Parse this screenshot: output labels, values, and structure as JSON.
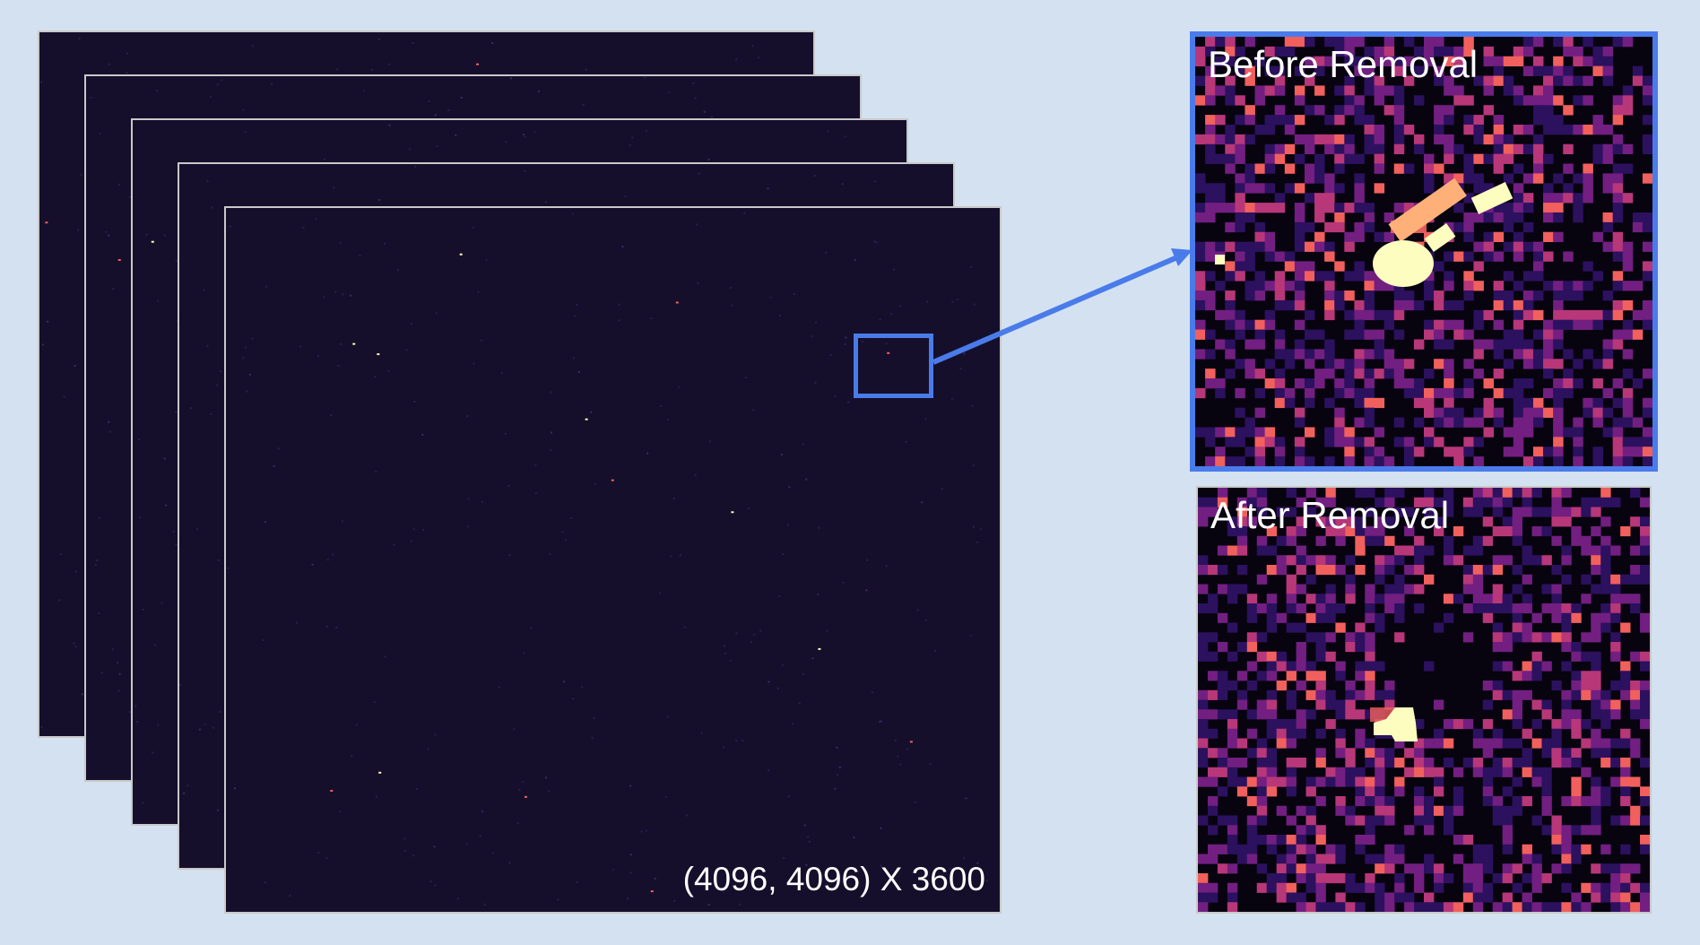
{
  "stack": {
    "frame_count_shown": 5,
    "caption": "(4096, 4096) X 3600"
  },
  "panels": {
    "before": {
      "label": "Before Removal"
    },
    "after": {
      "label": "After Removal"
    }
  },
  "colors": {
    "background": "#d3e1f1",
    "frame_fill": "#150f2b",
    "highlight": "#4a7bea",
    "colormap": [
      "#000004",
      "#2c115f",
      "#721f81",
      "#b73779",
      "#f1605d",
      "#feb078",
      "#fcfdbf"
    ]
  }
}
